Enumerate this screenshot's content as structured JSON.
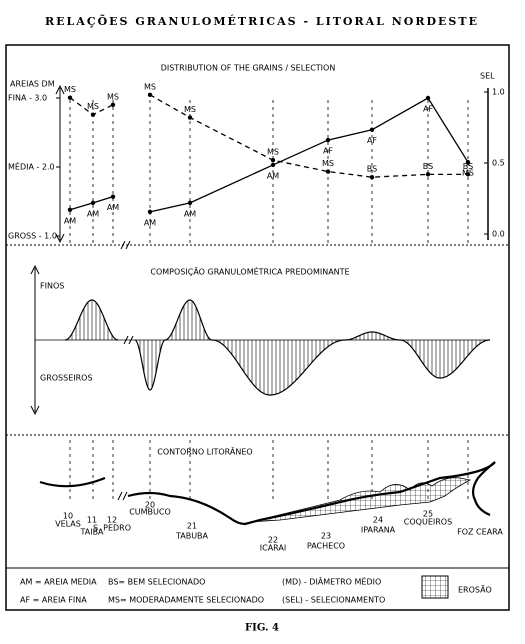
{
  "title": "RELAÇÕES GRANULOMÉTRICAS - LITORAL  NORDESTE",
  "chart_data": {
    "type": "line",
    "title": "DISTRIBUTION OF THE GRAINS / SELECTION",
    "y_label": "AREIAS DM",
    "y2_label": "SEL",
    "categories": [
      "10",
      "11",
      "12",
      "20",
      "21",
      "22",
      "23",
      "24",
      "25",
      null
    ],
    "ylim": [
      1,
      3
    ],
    "yticks": [
      {
        "value": 3,
        "label": "FINA - 3.0"
      },
      {
        "value": 2,
        "label": "MÉDIA - 2.0"
      },
      {
        "value": 1,
        "label": "GROSS - 1.0"
      }
    ],
    "y2lim": [
      0,
      1
    ],
    "y2ticks": [
      {
        "value": 1,
        "label": "1.0"
      },
      {
        "value": 0.5,
        "label": "0.5"
      },
      {
        "value": 0,
        "label": "0.0"
      }
    ],
    "series": [
      {
        "name": "(MD) - DIÂMETRO MÉDIO",
        "color": "#000000",
        "dashed": false,
        "values": [
          1.38,
          1.48,
          1.57,
          1.35,
          1.48,
          2.03,
          2.39,
          2.54,
          3.0,
          2.07
        ],
        "labels": [
          "AM",
          "AM",
          "AM",
          "AM",
          "AM",
          "AM",
          "AF",
          "AF",
          "AF",
          "MS"
        ]
      },
      {
        "name": "(SEL) - SELECIONAMENTO",
        "color": "#000000",
        "dashed": true,
        "axis": "y2",
        "values": [
          0.96,
          0.84,
          0.91,
          0.98,
          0.82,
          0.52,
          0.44,
          0.4,
          0.42,
          0.42
        ],
        "labels": [
          "MS",
          "MS",
          "MS",
          "MS",
          "MS",
          "MS",
          "MS",
          "BS",
          "BS",
          "BS"
        ]
      }
    ]
  },
  "composition": {
    "title": "COMPOSIÇÃO GRANULOMÉTRICA PREDOMINANTE",
    "top_label": "FINOS",
    "bottom_label": "GROSSEIROS"
  },
  "coast": {
    "title": "CONTORNO LITORÂNEO",
    "station_names": [
      "VELAS",
      "TAIBA",
      "S. PEDRO",
      "CUMBUCO",
      "TABUBA",
      "ICARAI",
      "PACHECO",
      "IPARANA",
      "COQUEIROS",
      "FOZ CEARA"
    ]
  },
  "legend": {
    "abbreviations": [
      "AM = AREIA MEDIA",
      "AF = AREIA FINA",
      "BS= BEM SELECIONADO",
      "MS= MODERADAMENTE SELECIONADO"
    ],
    "erosion": "EROSÃO"
  },
  "caption": "FIG. 4"
}
